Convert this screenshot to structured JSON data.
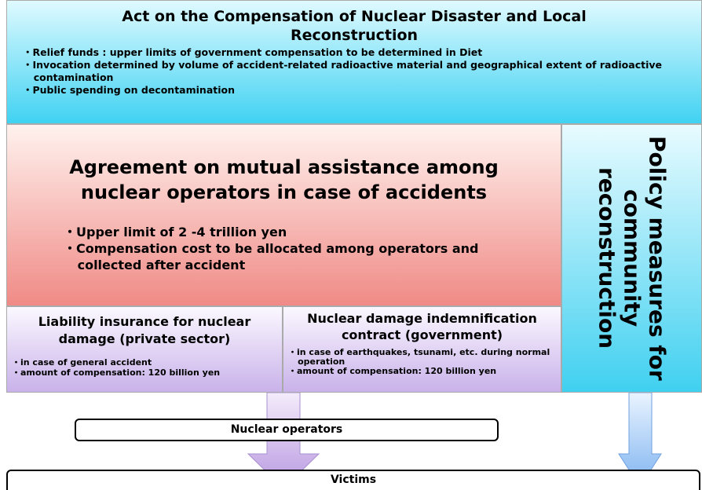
{
  "top": {
    "title": "Act on the Compensation of Nuclear Disaster and Local Reconstruction",
    "bullets": [
      "・Relief funds : upper limits of government compensation to be determined in Diet",
      "・Invocation determined by volume of accident-related radioactive material and geographical extent of radioactive contamination",
      "・Public spending on decontamination"
    ]
  },
  "agreement": {
    "title": "Agreement on mutual assistance among nuclear operators in case of accidents",
    "bullets": [
      "・Upper limit of 2 -4 trillion yen",
      "・Compensation cost to be allocated among operators and collected after accident"
    ]
  },
  "policy": {
    "title": "Policy measures for community reconstruction"
  },
  "insurance": {
    "title": "Liability insurance for nuclear damage (private sector)",
    "bullets": [
      "・in case of general accident",
      "・amount of compensation: 120 billion yen"
    ]
  },
  "contract": {
    "title": "Nuclear damage indemnification contract (government)",
    "bullets": [
      "・in case of earthquakes, tsunami, etc. during normal operation",
      "・amount of compensation: 120 billion yen"
    ]
  },
  "operators": {
    "label": "Nuclear operators"
  },
  "victims": {
    "label": "Victims"
  }
}
